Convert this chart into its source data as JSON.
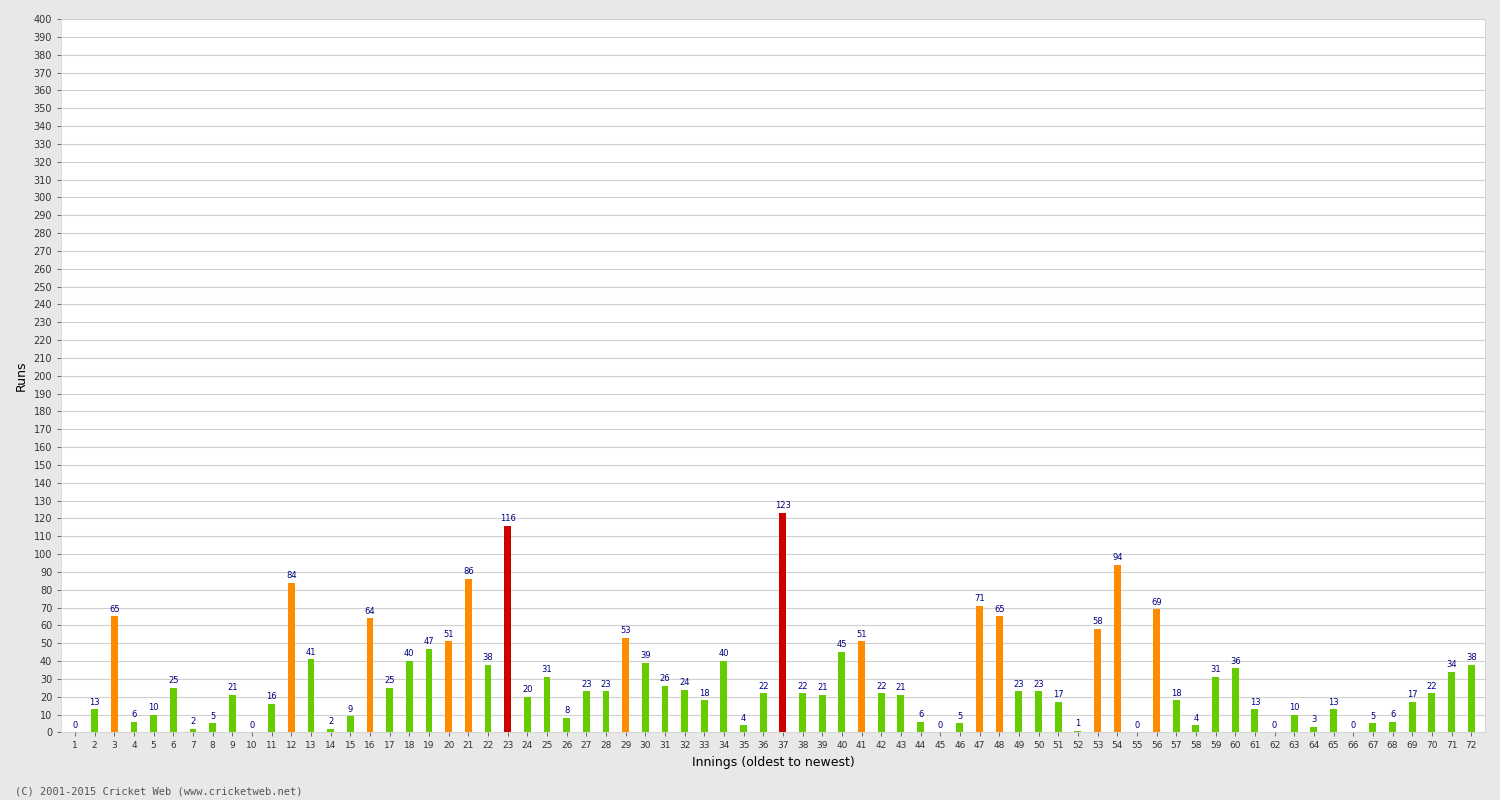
{
  "xlabel": "Innings (oldest to newest)",
  "ylabel": "Runs",
  "footer": "(C) 2001-2015 Cricket Web (www.cricketweb.net)",
  "ylim": [
    0,
    400
  ],
  "innings": [
    1,
    2,
    3,
    4,
    5,
    6,
    7,
    8,
    9,
    10,
    11,
    12,
    13,
    14,
    15,
    16,
    17,
    18,
    19,
    20,
    21,
    22,
    23,
    24,
    25,
    26,
    27,
    28,
    29,
    30,
    31,
    32,
    33,
    34,
    35,
    36,
    37,
    38,
    39,
    40,
    41,
    42,
    43,
    44,
    45,
    46,
    47,
    48,
    49,
    50,
    51,
    52,
    53,
    54,
    55,
    56,
    57,
    58,
    59,
    60,
    61,
    62,
    63,
    64,
    65,
    66,
    67,
    68,
    69,
    70,
    71,
    72
  ],
  "scores": [
    0,
    13,
    65,
    6,
    10,
    25,
    2,
    5,
    21,
    0,
    16,
    84,
    41,
    2,
    9,
    64,
    25,
    40,
    47,
    51,
    86,
    38,
    116,
    20,
    31,
    8,
    23,
    23,
    53,
    39,
    26,
    24,
    18,
    40,
    4,
    22,
    123,
    22,
    21,
    45,
    51,
    22,
    21,
    6,
    0,
    5,
    71,
    65,
    23,
    23,
    17,
    1,
    58,
    94,
    0,
    69,
    18,
    4,
    31,
    36,
    13,
    0,
    10,
    3,
    13,
    0,
    5,
    6,
    17,
    22,
    34,
    38
  ],
  "century_color": "#cc0000",
  "fifty_color": "#ff8c00",
  "normal_color": "#66cc00",
  "background_color": "#e8e8e8",
  "plot_background": "#ffffff",
  "grid_color": "#d0d0d0",
  "label_color": "#000080",
  "bar_width": 0.35
}
